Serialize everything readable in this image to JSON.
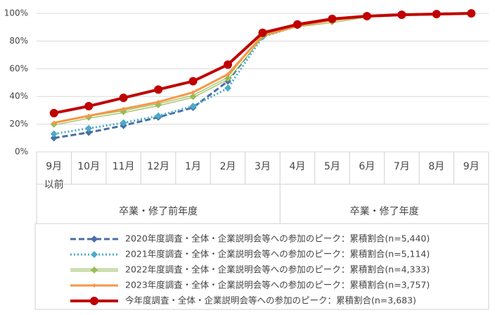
{
  "chart_data": {
    "type": "line",
    "categories": [
      "9月\n以前",
      "10月",
      "11月",
      "12月",
      "1月",
      "2月",
      "3月",
      "4月",
      "5月",
      "6月",
      "7月",
      "8月",
      "9月"
    ],
    "groups": [
      {
        "label": "卒業・修了前年度",
        "span": 7
      },
      {
        "label": "卒業・修了年度",
        "span": 6
      }
    ],
    "ylim": [
      0,
      100
    ],
    "yticks": [
      {
        "value": 0,
        "label": "0%"
      },
      {
        "value": 20,
        "label": "20%"
      },
      {
        "value": 40,
        "label": "40%"
      },
      {
        "value": 60,
        "label": "60%"
      },
      {
        "value": 80,
        "label": "80%"
      },
      {
        "value": 100,
        "label": "100%"
      }
    ],
    "grid": true,
    "series": [
      {
        "name": "2020年度調査・全体・企業説明会等への参加のピーク：累積割合(n=5,440)",
        "color": "#4a6fa5",
        "line_style": "dashed",
        "marker": "diamond",
        "values": [
          10,
          14,
          19,
          25,
          32,
          51,
          84,
          91,
          95,
          98,
          99,
          99.5,
          100
        ]
      },
      {
        "name": "2021年度調査・全体・企業説明会等への参加のピーク：累積割合(n=5,114)",
        "color": "#4bacc6",
        "line_style": "dotted",
        "marker": "diamond",
        "values": [
          13,
          17,
          21,
          26,
          33,
          46,
          83,
          91,
          95,
          98,
          99,
          99.5,
          100
        ]
      },
      {
        "name": "2022年度調査・全体・企業説明会等への参加のピーク：累積割合(n=4,333)",
        "color": "#9bbb59",
        "line_style": "double",
        "marker": "diamond",
        "values": [
          20,
          25,
          29,
          34,
          40,
          53,
          84,
          91,
          94,
          98,
          99,
          99.5,
          100
        ]
      },
      {
        "name": "2023年度調査・全体・企業説明会等への参加のピーク：累積割合(n=3,757)",
        "color": "#f79646",
        "line_style": "solid",
        "marker": "small",
        "values": [
          21,
          26,
          31,
          36,
          43,
          56,
          84,
          91,
          95,
          98,
          99,
          99.5,
          100
        ]
      },
      {
        "name": "今年度調査・全体・企業説明会等への参加のピーク：累積割合(n=3,683)",
        "color": "#c00000",
        "line_style": "thick",
        "marker": "circle",
        "values": [
          28,
          33,
          39,
          45,
          51,
          63,
          86,
          92,
          96,
          98,
          99,
          99.5,
          100
        ]
      }
    ]
  }
}
